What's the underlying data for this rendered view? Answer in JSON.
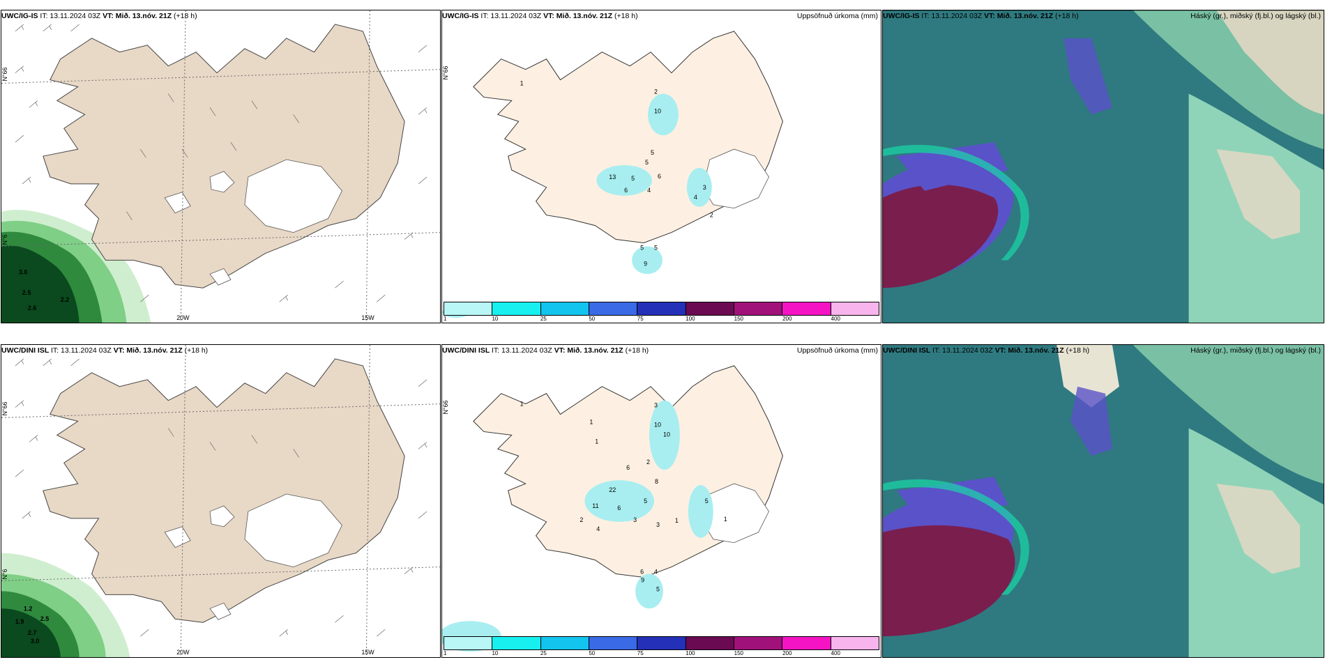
{
  "header": {
    "it_prefix": "IT:",
    "it_value": "13.11.2024 03Z",
    "vt_label": "VT: Mið. 13.nóv. 21Z",
    "lead": "(+18 h)",
    "precip_title": "Uppsöfnuð úrkoma (mm)",
    "cloud_title": "Háský (gr.), miðský (fj.bl.) og lágský (bl.)"
  },
  "rows": [
    {
      "model": "UWC/IG-IS"
    },
    {
      "model": "UWC/DINI ISL"
    }
  ],
  "wind_panel": {
    "lat_labels": [
      "N°66",
      "N°6"
    ],
    "lon_labels": [
      "20W",
      "15W"
    ],
    "row1_values": [
      "3.0",
      "2.5",
      "2.6",
      "2.2"
    ],
    "row2_values": [
      "1.2",
      "2.5",
      "1.9",
      "2.7",
      "3.0"
    ]
  },
  "precip_panel": {
    "lat_label": "N°66",
    "row1_values": [
      "1",
      "2",
      "10",
      "5",
      "5",
      "13",
      "6",
      "4",
      "5",
      "6",
      "3",
      "4",
      "2",
      "5",
      "5",
      "9"
    ],
    "row2_values": [
      "1",
      "3",
      "10",
      "10",
      "1",
      "1",
      "6",
      "2",
      "8",
      "22",
      "11",
      "6",
      "5",
      "2",
      "4",
      "3",
      "3",
      "1",
      "5",
      "1",
      "6",
      "4",
      "5",
      "9"
    ],
    "legend_ticks": [
      "1",
      "10",
      "25",
      "50",
      "75",
      "100",
      "150",
      "200",
      "400"
    ],
    "legend_colors": [
      "#b9f6f6",
      "#18f0f0",
      "#12c4ee",
      "#3a6ae6",
      "#2430b8",
      "#6a0a52",
      "#a0127a",
      "#f414c4",
      "#f8b4ec"
    ]
  },
  "colors": {
    "land": "#e8d8c6",
    "land_precip": "#fdf0e2",
    "sea_cloud": "#2f7a80",
    "green_dark": "#0a4a1e",
    "green_mid": "#2f8a3e",
    "green_light": "#9fd8a0",
    "purple": "#5a52c8",
    "maroon": "#7a1e4e",
    "cyan_edge": "#18d8a8"
  }
}
